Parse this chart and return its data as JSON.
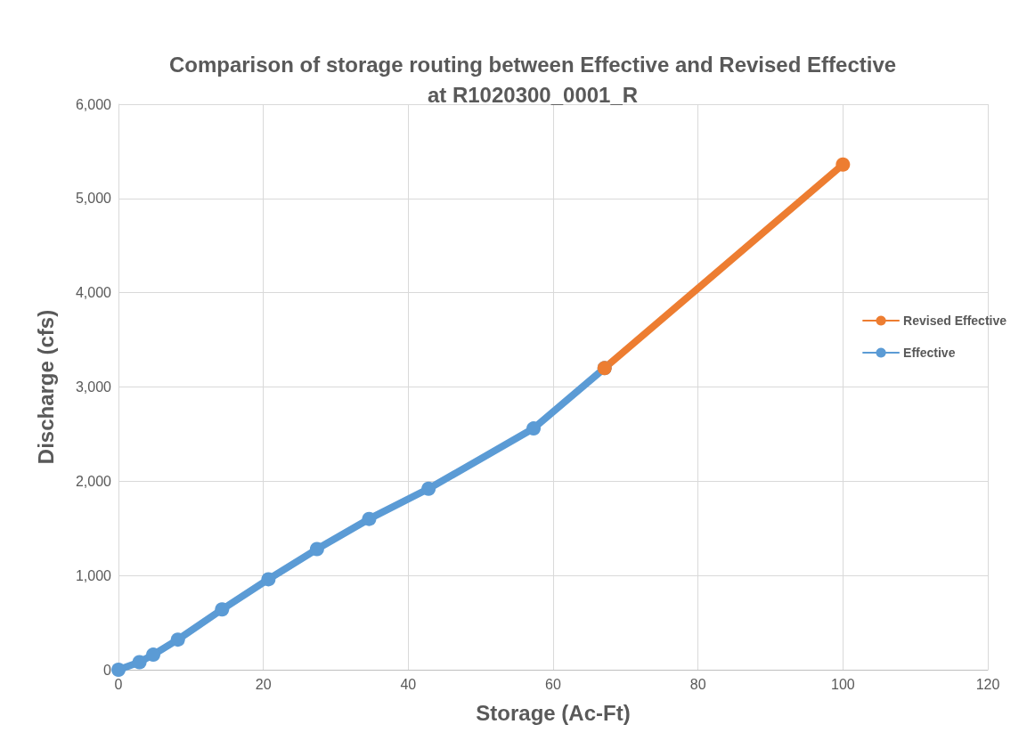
{
  "chart_data": {
    "type": "line",
    "title": "Comparison of storage routing between Effective and Revised Effective\nat R1020300_0001_R",
    "xlabel": "Storage (Ac-Ft)",
    "ylabel": "Discharge (cfs)",
    "series": [
      {
        "name": "Effective",
        "color": "#5b9bd5",
        "x": [
          0,
          2.9,
          4.8,
          8.2,
          14.3,
          20.7,
          27.4,
          34.6,
          42.8,
          57.3,
          67.1
        ],
        "values": [
          0,
          80,
          160,
          320,
          640,
          960,
          1280,
          1600,
          1920,
          2560,
          3200
        ]
      },
      {
        "name": "Revised Effective",
        "color": "#ed7d31",
        "x": [
          67.1,
          100
        ],
        "values": [
          3200,
          5360
        ]
      }
    ],
    "xlim": [
      0,
      120
    ],
    "xticks": [
      0,
      20,
      40,
      60,
      80,
      100,
      120
    ],
    "ylim": [
      0,
      6000
    ],
    "yticks": [
      0,
      {
        "value": 1000,
        "label": "1,000"
      },
      {
        "value": 2000,
        "label": "2,000"
      },
      {
        "value": 3000,
        "label": "3,000"
      },
      {
        "value": 4000,
        "label": "4,000"
      },
      {
        "value": 5000,
        "label": "5,000"
      },
      {
        "value": 6000,
        "label": "6,000"
      }
    ],
    "grid": true,
    "legend": "right",
    "marker": "circle",
    "line_style": "solid"
  }
}
